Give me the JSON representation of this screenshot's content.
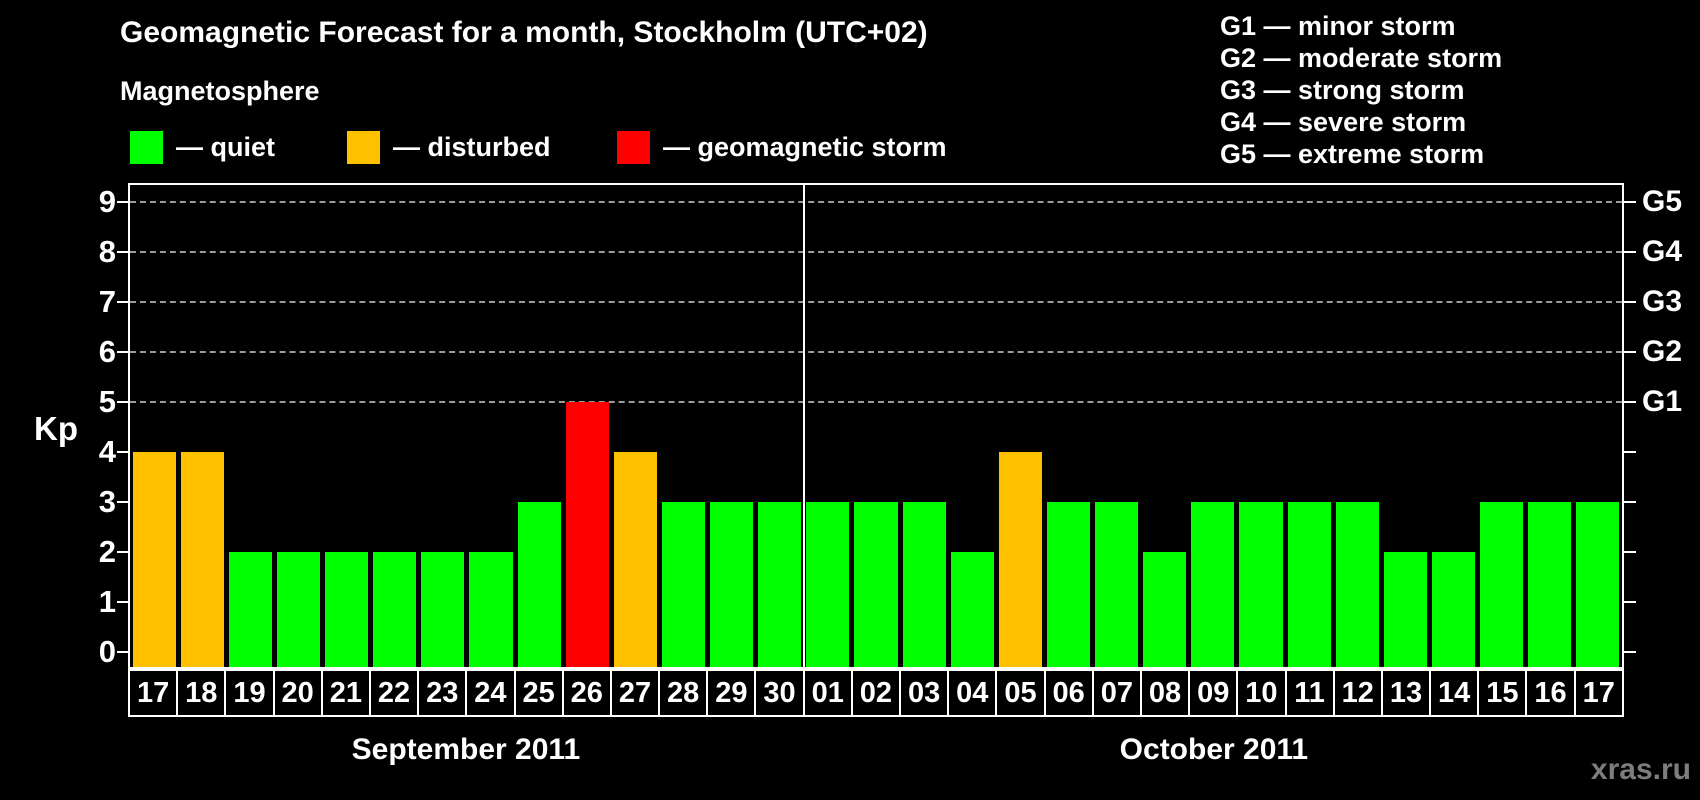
{
  "title": "Geomagnetic Forecast for a month, Stockholm (UTC+02)",
  "subtitle": "Magnetosphere",
  "legend": {
    "items": [
      {
        "label": "— quiet",
        "state": "quiet"
      },
      {
        "label": "— disturbed",
        "state": "disturbed"
      },
      {
        "label": "— geomagnetic storm",
        "state": "storm"
      }
    ]
  },
  "g_legend": [
    "G1 — minor storm",
    "G2 — moderate storm",
    "G3 — strong storm",
    "G4 — severe storm",
    "G5 — extreme storm"
  ],
  "watermark": "xras.ru",
  "colors": {
    "quiet": "#00ff00",
    "disturbed": "#ffc000",
    "storm": "#ff0000",
    "axis": "#ffffff",
    "grid": "#9b9b9b",
    "text": "#ffffff",
    "watermark": "#7d7d7d",
    "background": "#000000"
  },
  "chart_data": {
    "type": "bar",
    "title": "Geomagnetic Forecast for a month, Stockholm (UTC+02)",
    "ylabel": "Kp",
    "ylim": [
      0,
      9
    ],
    "y_ticks": [
      0,
      1,
      2,
      3,
      4,
      5,
      6,
      7,
      8,
      9
    ],
    "grid_levels": [
      5,
      6,
      7,
      8,
      9
    ],
    "grid_style": "dashed",
    "legend_position": "top-left",
    "right_axis": [
      {
        "level": 5,
        "label": "G1"
      },
      {
        "level": 6,
        "label": "G2"
      },
      {
        "level": 7,
        "label": "G3"
      },
      {
        "level": 8,
        "label": "G4"
      },
      {
        "level": 9,
        "label": "G5"
      }
    ],
    "months": [
      {
        "label": "September 2011",
        "days": [
          {
            "day": "17",
            "kp": 4,
            "state": "disturbed"
          },
          {
            "day": "18",
            "kp": 4,
            "state": "disturbed"
          },
          {
            "day": "19",
            "kp": 2,
            "state": "quiet"
          },
          {
            "day": "20",
            "kp": 2,
            "state": "quiet"
          },
          {
            "day": "21",
            "kp": 2,
            "state": "quiet"
          },
          {
            "day": "22",
            "kp": 2,
            "state": "quiet"
          },
          {
            "day": "23",
            "kp": 2,
            "state": "quiet"
          },
          {
            "day": "24",
            "kp": 2,
            "state": "quiet"
          },
          {
            "day": "25",
            "kp": 3,
            "state": "quiet"
          },
          {
            "day": "26",
            "kp": 5,
            "state": "storm"
          },
          {
            "day": "27",
            "kp": 4,
            "state": "disturbed"
          },
          {
            "day": "28",
            "kp": 3,
            "state": "quiet"
          },
          {
            "day": "29",
            "kp": 3,
            "state": "quiet"
          },
          {
            "day": "30",
            "kp": 3,
            "state": "quiet"
          }
        ]
      },
      {
        "label": "October 2011",
        "days": [
          {
            "day": "01",
            "kp": 3,
            "state": "quiet"
          },
          {
            "day": "02",
            "kp": 3,
            "state": "quiet"
          },
          {
            "day": "03",
            "kp": 3,
            "state": "quiet"
          },
          {
            "day": "04",
            "kp": 2,
            "state": "quiet"
          },
          {
            "day": "05",
            "kp": 4,
            "state": "disturbed"
          },
          {
            "day": "06",
            "kp": 3,
            "state": "quiet"
          },
          {
            "day": "07",
            "kp": 3,
            "state": "quiet"
          },
          {
            "day": "08",
            "kp": 2,
            "state": "quiet"
          },
          {
            "day": "09",
            "kp": 3,
            "state": "quiet"
          },
          {
            "day": "10",
            "kp": 3,
            "state": "quiet"
          },
          {
            "day": "11",
            "kp": 3,
            "state": "quiet"
          },
          {
            "day": "12",
            "kp": 3,
            "state": "quiet"
          },
          {
            "day": "13",
            "kp": 2,
            "state": "quiet"
          },
          {
            "day": "14",
            "kp": 2,
            "state": "quiet"
          },
          {
            "day": "15",
            "kp": 3,
            "state": "quiet"
          },
          {
            "day": "16",
            "kp": 3,
            "state": "quiet"
          },
          {
            "day": "17",
            "kp": 3,
            "state": "quiet"
          }
        ]
      }
    ]
  }
}
